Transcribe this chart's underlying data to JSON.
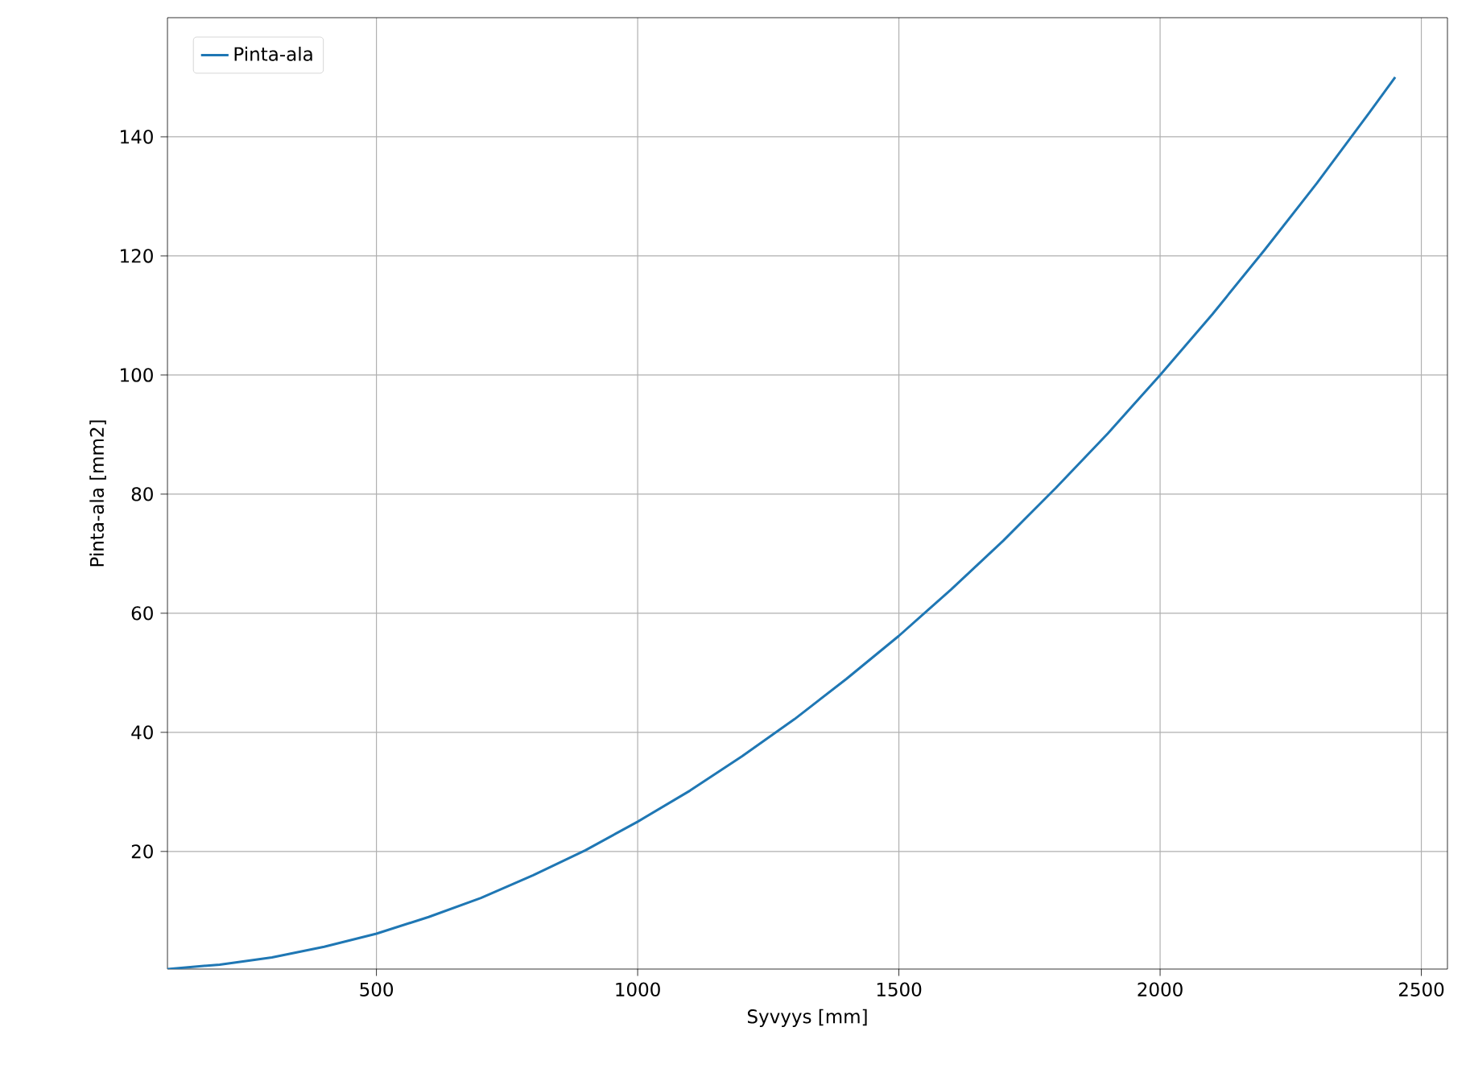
{
  "chart_data": {
    "type": "line",
    "xlabel": "Syvyys [mm]",
    "ylabel": "Pinta-ala [mm2]",
    "x": [
      100,
      200,
      300,
      400,
      500,
      600,
      700,
      800,
      900,
      1000,
      1100,
      1200,
      1300,
      1400,
      1500,
      1600,
      1700,
      1800,
      1900,
      2000,
      2100,
      2200,
      2300,
      2400,
      2450
    ],
    "series": [
      {
        "name": "Pinta-ala",
        "color": "#1f77b4",
        "values": [
          0.25,
          1,
          2.2,
          4,
          6.2,
          9,
          12.2,
          16,
          20.2,
          25,
          30.2,
          36,
          42.2,
          49,
          56.2,
          64,
          72.2,
          81,
          90.2,
          100,
          110.2,
          121,
          132.2,
          144,
          150
        ]
      }
    ],
    "xlim": [
      100,
      2550
    ],
    "ylim": [
      0.25,
      160
    ],
    "xticks": [
      500,
      1000,
      1500,
      2000,
      2500
    ],
    "yticks": [
      20,
      40,
      60,
      80,
      100,
      120,
      140
    ],
    "grid": true,
    "legend": "top left",
    "marker": "none",
    "line_style": "solid"
  }
}
